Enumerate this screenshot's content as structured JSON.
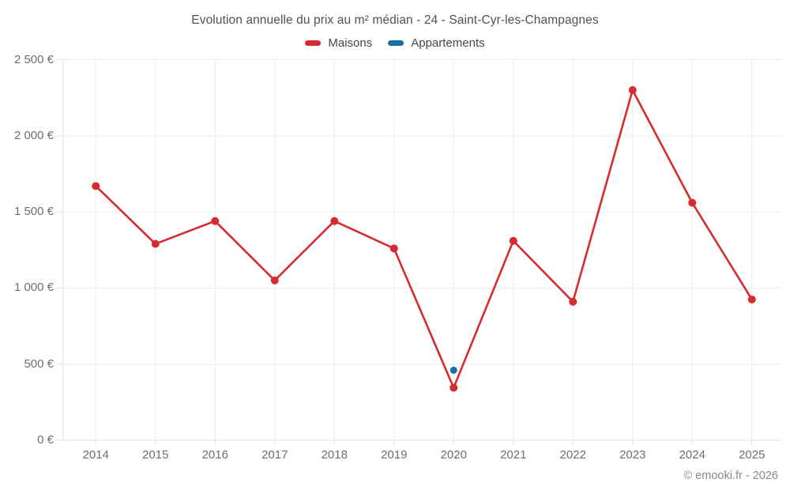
{
  "footer": {
    "credit": "© emooki.fr - 2026"
  },
  "chart_data": {
    "type": "line",
    "title": "Evolution annuelle du prix au m² médian - 24 - Saint-Cyr-les-Champagnes",
    "categories": [
      "2014",
      "2015",
      "2016",
      "2017",
      "2018",
      "2019",
      "2020",
      "2021",
      "2022",
      "2023",
      "2024",
      "2025"
    ],
    "series": [
      {
        "name": "Maisons",
        "color": "#d62b2f",
        "values": [
          1670,
          1290,
          1440,
          1050,
          1440,
          1260,
          345,
          1310,
          910,
          2300,
          1560,
          925
        ]
      },
      {
        "name": "Appartements",
        "color": "#1a6fa4",
        "values": [
          null,
          null,
          null,
          null,
          null,
          null,
          460,
          null,
          null,
          null,
          null,
          null
        ]
      }
    ],
    "ylabel": "",
    "xlabel": "",
    "ylim": [
      0,
      2500
    ],
    "y_ticks": [
      {
        "value": 0,
        "label": "0 €"
      },
      {
        "value": 500,
        "label": "500 €"
      },
      {
        "value": 1000,
        "label": "1 000 €"
      },
      {
        "value": 1500,
        "label": "1 500 €"
      },
      {
        "value": 2000,
        "label": "2 000 €"
      },
      {
        "value": 2500,
        "label": "2 500 €"
      }
    ],
    "grid": true,
    "legend_position": "top"
  }
}
